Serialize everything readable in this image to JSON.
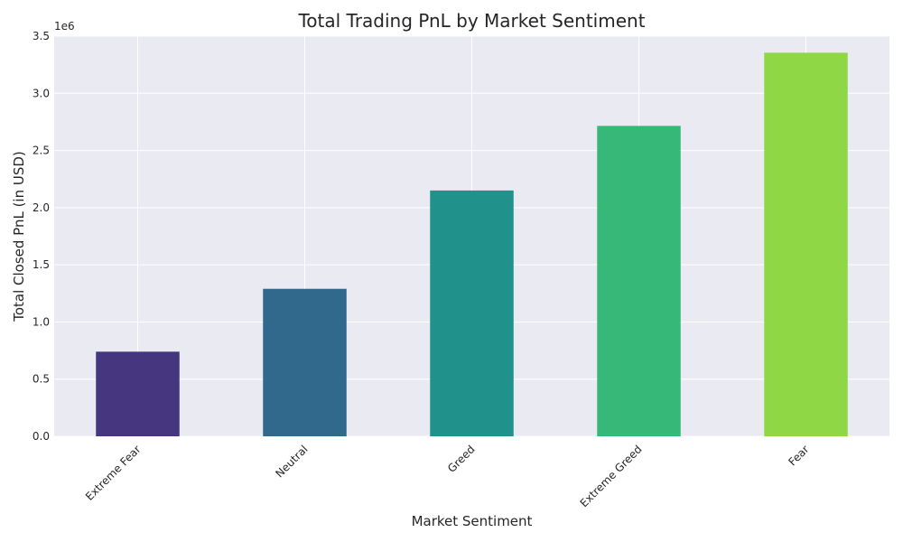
{
  "chart_data": {
    "type": "bar",
    "title": "Total Trading PnL by Market Sentiment",
    "xlabel": "Market Sentiment",
    "ylabel": "Total Closed PnL (in USD)",
    "y_multiplier_label": "1e6",
    "categories": [
      "Extreme Fear",
      "Neutral",
      "Greed",
      "Extreme Greed",
      "Fear"
    ],
    "values": [
      740000,
      1290000,
      2150000,
      2715000,
      3355000
    ],
    "ylim": [
      0,
      3500000
    ],
    "yticks": [
      0,
      500000,
      1000000,
      1500000,
      2000000,
      2500000,
      3000000,
      3500000
    ],
    "ytick_labels": [
      "0.0",
      "0.5",
      "1.0",
      "1.5",
      "2.0",
      "2.5",
      "3.0",
      "3.5"
    ],
    "colors": [
      "#463680",
      "#30698c",
      "#21918c",
      "#36b878",
      "#8fd744"
    ],
    "plot_background": "#eaeaf2",
    "grid": true,
    "legend": "none"
  }
}
